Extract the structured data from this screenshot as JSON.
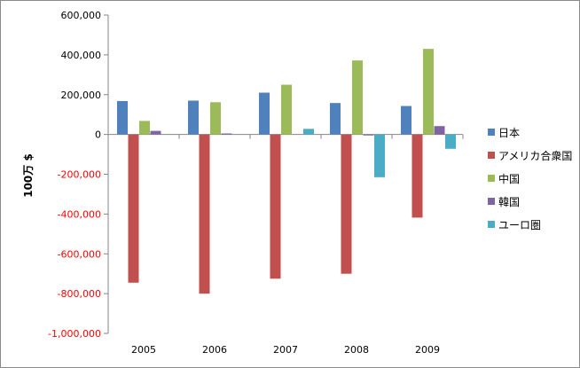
{
  "chart_data": {
    "type": "bar",
    "title": "",
    "xlabel": "",
    "ylabel": "100万 $",
    "categories": [
      "2005",
      "2006",
      "2007",
      "2008",
      "2009"
    ],
    "ylim": [
      -1000000,
      600000
    ],
    "yticks": [
      600000,
      400000,
      200000,
      0,
      -200000,
      -400000,
      -600000,
      -800000,
      -1000000
    ],
    "ytick_labels": [
      "600,000",
      "400,000",
      "200,000",
      "0",
      "-200,000",
      "-400,000",
      "-600,000",
      "-800,000",
      "-1,000,000"
    ],
    "negative_tick_color": "#ff0000",
    "grid": false,
    "legend_position": "right",
    "series": [
      {
        "name": "日本",
        "color": "#4f81bd",
        "values": [
          168000,
          170000,
          210000,
          158000,
          143000
        ]
      },
      {
        "name": "アメリカ合衆国",
        "color": "#c0504d",
        "values": [
          -745000,
          -800000,
          -725000,
          -700000,
          -418000
        ]
      },
      {
        "name": "中国",
        "color": "#9bbb59",
        "values": [
          68000,
          162000,
          250000,
          372000,
          430000
        ]
      },
      {
        "name": "韓国",
        "color": "#8064a2",
        "values": [
          18000,
          5000,
          0,
          -5000,
          42000
        ]
      },
      {
        "name": "ユーロ圏",
        "color": "#4bacc6",
        "values": [
          0,
          0,
          28000,
          -215000,
          -72000
        ]
      }
    ]
  }
}
